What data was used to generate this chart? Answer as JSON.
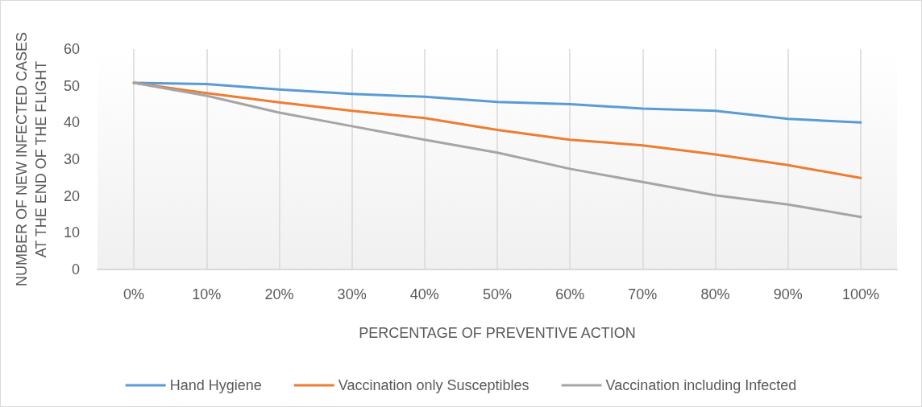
{
  "chart_data": {
    "type": "line",
    "xlabel": "PERCENTAGE OF PREVENTIVE ACTION",
    "ylabel": "NUMBER OF NEW INFECTED CASES AT THE END OF THE FLIGHT",
    "categories": [
      "0%",
      "10%",
      "20%",
      "30%",
      "40%",
      "50%",
      "60%",
      "70%",
      "80%",
      "90%",
      "100%"
    ],
    "series": [
      {
        "name": "Hand Hygiene",
        "color": "#5b9bd5",
        "values": [
          50.8,
          50.5,
          49,
          47.8,
          47,
          45.6,
          45,
          43.8,
          43.2,
          41,
          40
        ]
      },
      {
        "name": "Vaccination only Susceptibles",
        "color": "#ed7d31",
        "values": [
          50.8,
          48,
          45.5,
          43.2,
          41.2,
          38,
          35.3,
          33.8,
          31.3,
          28.4,
          24.9
        ]
      },
      {
        "name": "Vaccination including Infected",
        "color": "#a5a5a5",
        "values": [
          50.8,
          47.3,
          42.7,
          39,
          35.3,
          31.8,
          27.4,
          23.8,
          20.2,
          17.7,
          14.3
        ]
      }
    ],
    "ylim": [
      0,
      60
    ],
    "yticks": [
      0,
      10,
      20,
      30,
      40,
      50,
      60
    ],
    "grid": "x",
    "legend": "bottom",
    "marker": "none",
    "line_style": "solid"
  }
}
